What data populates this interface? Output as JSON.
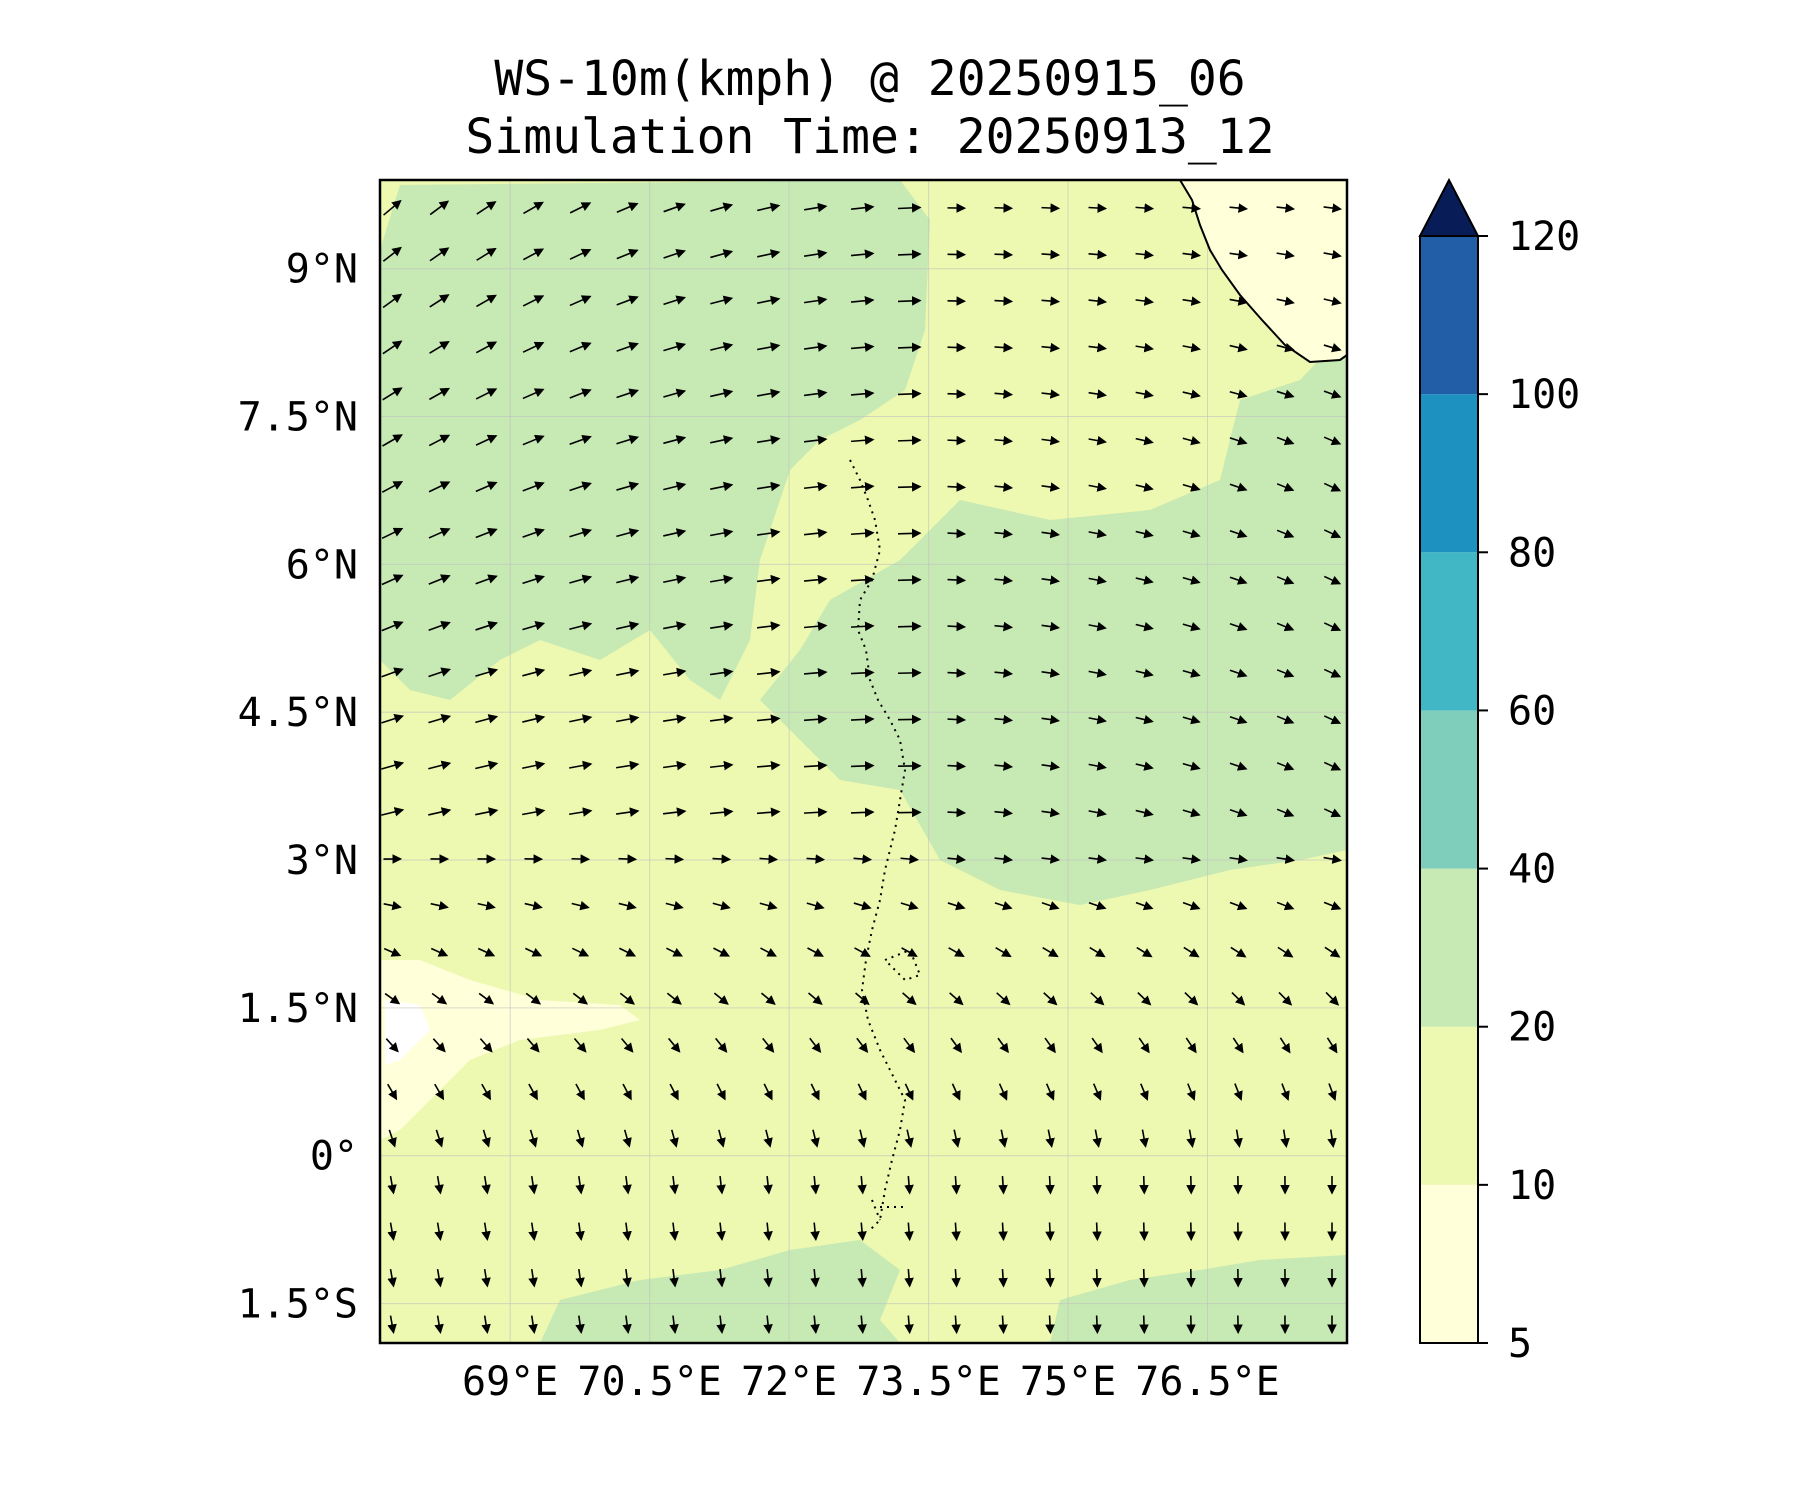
{
  "title": {
    "line1": "WS-10m(kmph) @ 20250915_06",
    "line2": "Simulation Time: 20250913_12"
  },
  "map": {
    "lat_ticks": [
      {
        "value": 9,
        "label": "9°N"
      },
      {
        "value": 7.5,
        "label": "7.5°N"
      },
      {
        "value": 6,
        "label": "6°N"
      },
      {
        "value": 4.5,
        "label": "4.5°N"
      },
      {
        "value": 3,
        "label": "3°N"
      },
      {
        "value": 1.5,
        "label": "1.5°N"
      },
      {
        "value": 0,
        "label": "0°"
      },
      {
        "value": -1.5,
        "label": "1.5°S"
      }
    ],
    "lon_ticks": [
      {
        "value": 69,
        "label": "69°E"
      },
      {
        "value": 70.5,
        "label": "70.5°E"
      },
      {
        "value": 72,
        "label": "72°E"
      },
      {
        "value": 73.5,
        "label": "73.5°E"
      },
      {
        "value": 75,
        "label": "75°E"
      },
      {
        "value": 76.5,
        "label": "76.5°E"
      }
    ],
    "lon_range": [
      67.6,
      78.0
    ],
    "lat_range": [
      -1.9,
      9.9
    ],
    "field": "WS-10m",
    "units": "kmph"
  },
  "colorbar": {
    "levels": [
      5,
      10,
      20,
      40,
      60,
      80,
      100,
      120
    ],
    "labels": [
      "5",
      "10",
      "20",
      "40",
      "60",
      "80",
      "100",
      "120"
    ],
    "colors": [
      "#ffffd9",
      "#edf8b1",
      "#c7e9b4",
      "#7fcdbb",
      "#41b6c4",
      "#1d91c0",
      "#225ea8",
      "#0c2c84"
    ],
    "extend": "max",
    "extend_color": "#081d58"
  }
}
